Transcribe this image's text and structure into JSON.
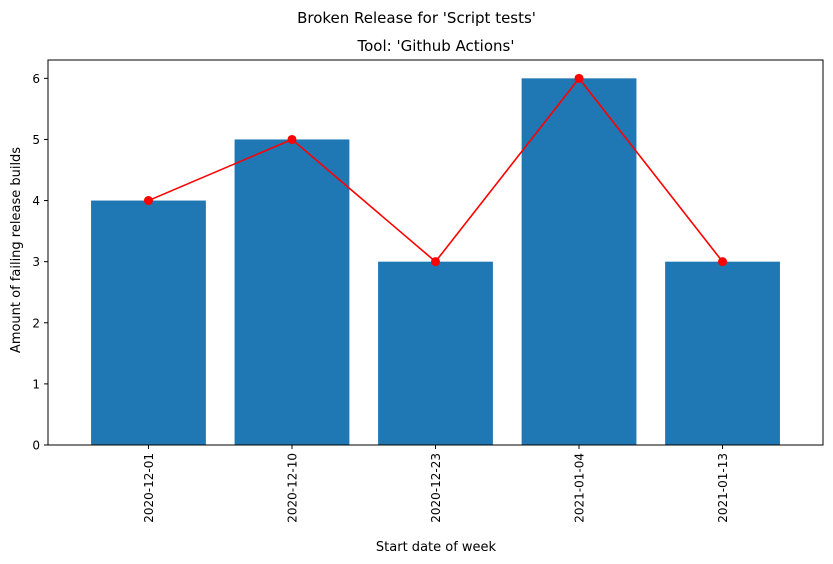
{
  "suptitle": "Broken Release for 'Script tests'",
  "chart_data": {
    "type": "bar",
    "title": "Tool: 'Github Actions'",
    "xlabel": "Start date of week",
    "ylabel": "Amount of failing release builds",
    "categories": [
      "2020-12-01",
      "2020-12-10",
      "2020-12-23",
      "2021-01-04",
      "2021-01-13"
    ],
    "values": [
      4,
      5,
      3,
      6,
      3
    ],
    "line_overlay": {
      "values": [
        4,
        5,
        3,
        6,
        3
      ],
      "color": "#ff0000",
      "marker": "circle"
    },
    "bar_color": "#1f77b4",
    "ylim": [
      0,
      6.3
    ],
    "yticks": [
      0,
      1,
      2,
      3,
      4,
      5,
      6
    ],
    "grid": false
  }
}
